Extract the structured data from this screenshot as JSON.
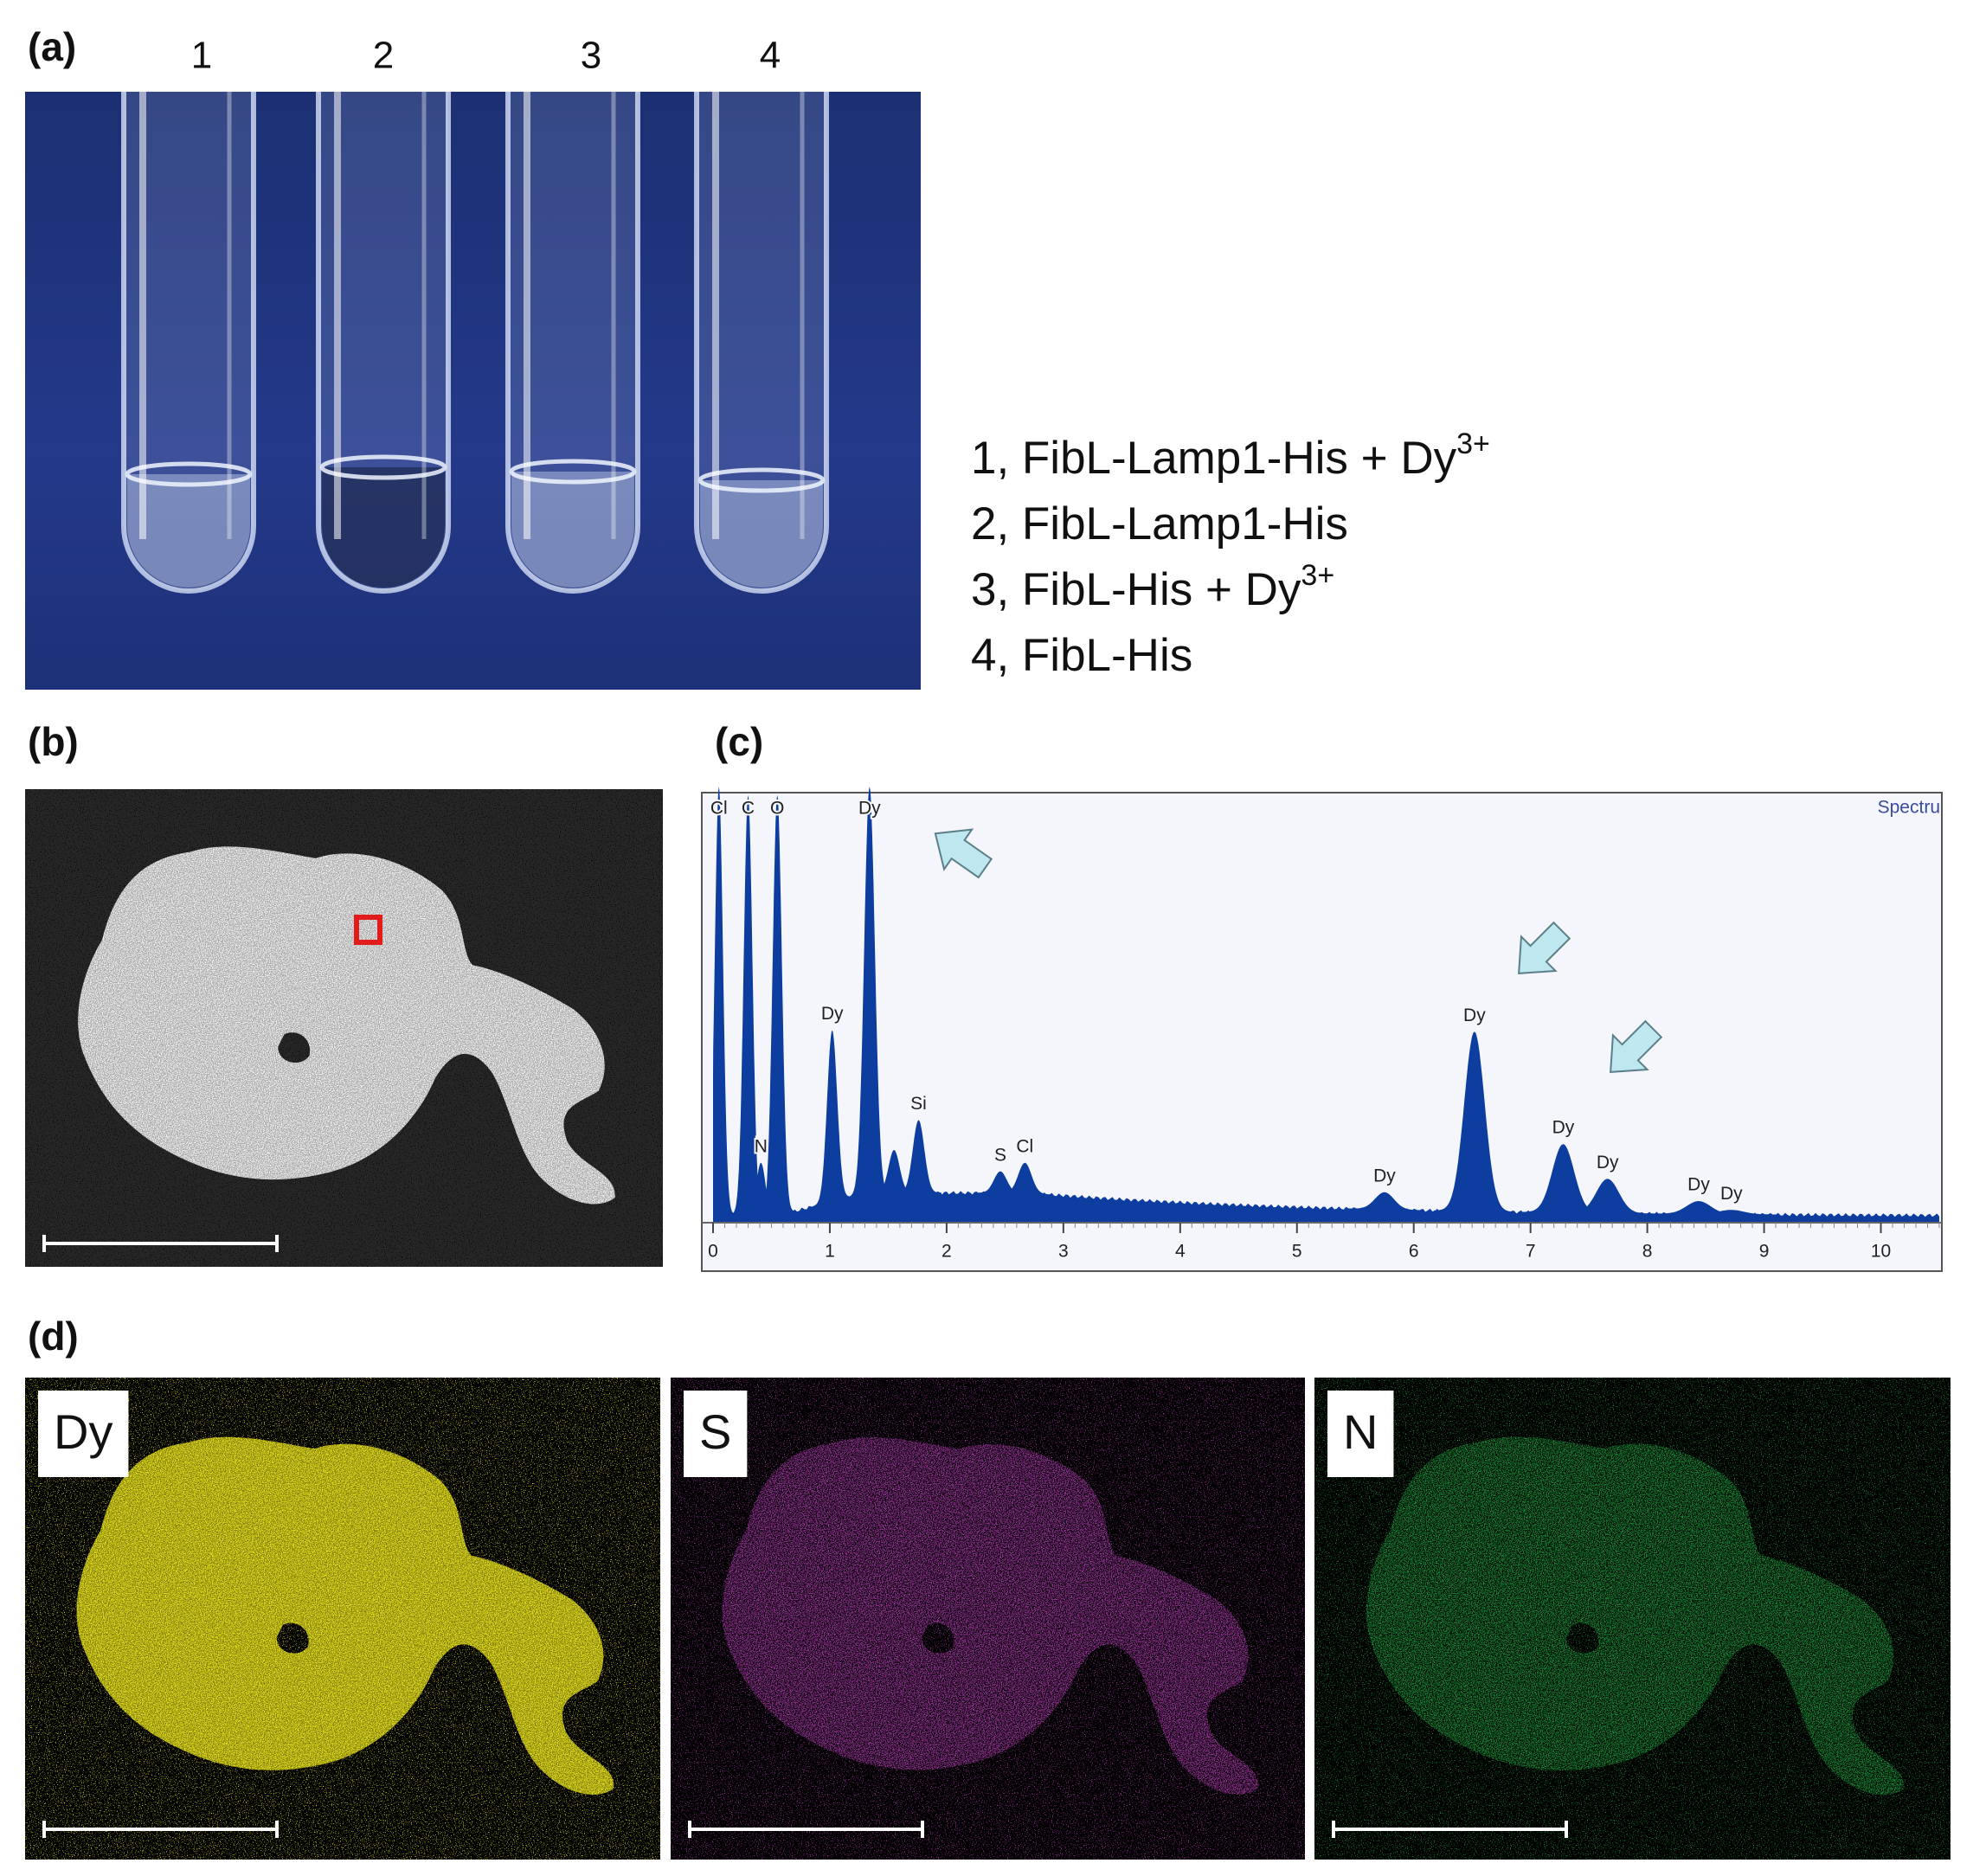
{
  "panel_a": {
    "label": "(a)",
    "tube_numbers": [
      "1",
      "2",
      "3",
      "4"
    ],
    "legend": [
      {
        "text": "1, FibL-Lamp1-His + Dy",
        "sup": "3+"
      },
      {
        "text": "2, FibL-Lamp1-His"
      },
      {
        "text": "3, FibL-His + Dy",
        "sup": "3+"
      },
      {
        "text": "4, FibL-His"
      }
    ]
  },
  "panel_b": {
    "label": "(b)"
  },
  "panel_c": {
    "label": "(c)",
    "spectrum": {
      "title": "Spectru",
      "color": "#0d3d9e",
      "xlim": [
        0,
        10.5
      ],
      "xticks": [
        0,
        1,
        2,
        3,
        4,
        5,
        6,
        7,
        8,
        9,
        10
      ],
      "peaks": [
        {
          "label": "Cl",
          "energy": 0.05,
          "intensity": 100
        },
        {
          "label": "C",
          "energy": 0.3,
          "intensity": 98
        },
        {
          "label": "N",
          "energy": 0.41,
          "intensity": 12
        },
        {
          "label": "O",
          "energy": 0.55,
          "intensity": 98
        },
        {
          "label": "Dy",
          "energy": 1.02,
          "intensity": 40
        },
        {
          "label": "Dy",
          "energy": 1.34,
          "intensity": 95
        },
        {
          "label": null,
          "energy": 1.55,
          "intensity": 10
        },
        {
          "label": "Si",
          "energy": 1.76,
          "intensity": 17
        },
        {
          "label": "S",
          "energy": 2.46,
          "intensity": 5
        },
        {
          "label": "Cl",
          "energy": 2.67,
          "intensity": 7
        },
        {
          "label": "Dy",
          "energy": 5.75,
          "intensity": 4
        },
        {
          "label": "Dy",
          "energy": 6.52,
          "intensity": 42
        },
        {
          "label": "Dy",
          "energy": 7.28,
          "intensity": 16
        },
        {
          "label": "Dy",
          "energy": 7.66,
          "intensity": 8
        },
        {
          "label": "Dy",
          "energy": 8.44,
          "intensity": 3
        },
        {
          "label": "Dy",
          "energy": 8.72,
          "intensity": 1
        }
      ]
    }
  },
  "panel_d": {
    "label": "(d)",
    "maps": [
      {
        "element": "Dy",
        "color": "#e6e01c"
      },
      {
        "element": "S",
        "color": "#a83aa8"
      },
      {
        "element": "N",
        "color": "#1f9a3c"
      }
    ]
  }
}
